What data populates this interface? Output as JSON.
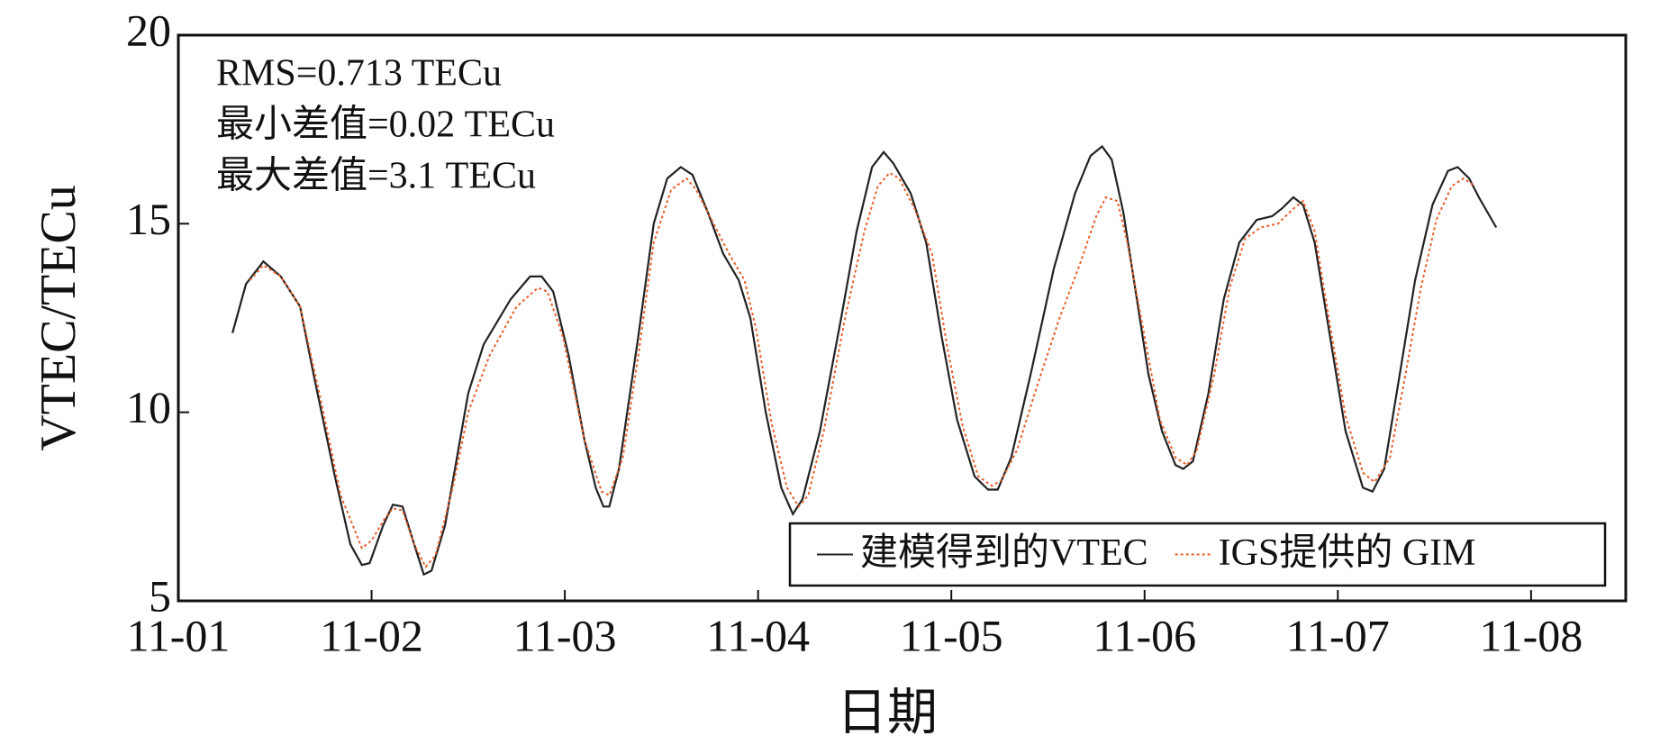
{
  "chart_data": {
    "type": "line",
    "xlabel": "日期",
    "ylabel": "VTEC/TECu",
    "annotations": [
      "RMS=0.713 TECu",
      "最小差值=0.02 TECu",
      "最大差值=3.1 TECu"
    ],
    "xlim": [
      0,
      7.49
    ],
    "xticks": [
      {
        "value": 0,
        "label": "11-01"
      },
      {
        "value": 1,
        "label": "11-02"
      },
      {
        "value": 2,
        "label": "11-03"
      },
      {
        "value": 3,
        "label": "11-04"
      },
      {
        "value": 4,
        "label": "11-05"
      },
      {
        "value": 5,
        "label": "11-06"
      },
      {
        "value": 6,
        "label": "11-07"
      },
      {
        "value": 7,
        "label": "11-08"
      }
    ],
    "ylim": [
      5,
      20
    ],
    "yticks": [
      5,
      10,
      15,
      20
    ],
    "legend": "lower right",
    "series": [
      {
        "name": "建模得到的VTEC",
        "color": "#222222",
        "style": "solid",
        "x": [
          0.28,
          0.35,
          0.44,
          0.53,
          0.63,
          0.7,
          0.81,
          0.89,
          0.95,
          0.99,
          1.06,
          1.11,
          1.16,
          1.22,
          1.27,
          1.31,
          1.38,
          1.5,
          1.58,
          1.72,
          1.82,
          1.88,
          1.94,
          2.02,
          2.1,
          2.16,
          2.2,
          2.23,
          2.28,
          2.38,
          2.46,
          2.53,
          2.6,
          2.66,
          2.74,
          2.82,
          2.9,
          2.96,
          3.04,
          3.12,
          3.18,
          3.23,
          3.32,
          3.43,
          3.51,
          3.59,
          3.65,
          3.7,
          3.79,
          3.87,
          3.95,
          4.03,
          4.12,
          4.19,
          4.24,
          4.31,
          4.41,
          4.53,
          4.64,
          4.72,
          4.78,
          4.83,
          4.89,
          4.96,
          5.02,
          5.09,
          5.16,
          5.2,
          5.25,
          5.33,
          5.41,
          5.49,
          5.58,
          5.66,
          5.71,
          5.77,
          5.82,
          5.88,
          5.96,
          6.04,
          6.13,
          6.18,
          6.24,
          6.32,
          6.4,
          6.49,
          6.57,
          6.62,
          6.68,
          6.73,
          6.82
        ],
        "values": [
          12.1,
          13.4,
          14.0,
          13.6,
          12.8,
          11.0,
          8.3,
          6.5,
          5.95,
          6.0,
          7.0,
          7.55,
          7.5,
          6.5,
          5.7,
          5.8,
          7.0,
          10.5,
          11.8,
          13.0,
          13.6,
          13.6,
          13.2,
          11.5,
          9.3,
          8.0,
          7.5,
          7.5,
          8.5,
          12.0,
          15.0,
          16.2,
          16.5,
          16.3,
          15.3,
          14.2,
          13.5,
          12.5,
          10.0,
          8.0,
          7.3,
          7.7,
          9.5,
          12.5,
          14.8,
          16.5,
          16.9,
          16.6,
          15.8,
          14.5,
          12.0,
          9.8,
          8.3,
          7.95,
          7.95,
          8.8,
          11.0,
          13.8,
          15.8,
          16.8,
          17.05,
          16.7,
          15.3,
          13.0,
          11.0,
          9.5,
          8.6,
          8.5,
          8.7,
          10.5,
          13.0,
          14.5,
          15.1,
          15.2,
          15.4,
          15.7,
          15.5,
          14.5,
          12.0,
          9.5,
          8.0,
          7.9,
          8.5,
          11.0,
          13.5,
          15.5,
          16.4,
          16.5,
          16.2,
          15.7,
          14.9
        ]
      },
      {
        "name": "IGS提供的 GIM",
        "color": "#e8602c",
        "style": "dotted",
        "x": [
          0.37,
          0.44,
          0.53,
          0.63,
          0.73,
          0.84,
          0.95,
          1.0,
          1.07,
          1.11,
          1.16,
          1.22,
          1.28,
          1.33,
          1.42,
          1.5,
          1.61,
          1.75,
          1.86,
          1.91,
          1.99,
          2.1,
          2.19,
          2.23,
          2.3,
          2.38,
          2.46,
          2.55,
          2.63,
          2.68,
          2.77,
          2.85,
          2.93,
          2.99,
          3.07,
          3.15,
          3.21,
          3.26,
          3.34,
          3.45,
          3.55,
          3.62,
          3.68,
          3.73,
          3.81,
          3.9,
          3.98,
          4.06,
          4.14,
          4.21,
          4.26,
          4.34,
          4.45,
          4.56,
          4.67,
          4.75,
          4.8,
          4.86,
          4.91,
          5.0,
          5.08,
          5.16,
          5.22,
          5.27,
          5.36,
          5.44,
          5.52,
          5.6,
          5.69,
          5.77,
          5.82,
          5.88,
          5.96,
          6.04,
          6.13,
          6.19,
          6.27,
          6.35,
          6.43,
          6.51,
          6.59,
          6.65,
          6.71
        ],
        "values": [
          13.5,
          13.9,
          13.6,
          12.8,
          10.5,
          7.8,
          6.4,
          6.6,
          7.2,
          7.45,
          7.4,
          6.5,
          5.9,
          6.2,
          8.0,
          10.0,
          11.5,
          12.8,
          13.3,
          13.2,
          12.0,
          9.3,
          7.9,
          7.8,
          8.8,
          11.5,
          14.5,
          15.9,
          16.2,
          15.9,
          15.0,
          14.2,
          13.5,
          12.2,
          9.7,
          8.0,
          7.5,
          7.8,
          9.5,
          12.5,
          14.8,
          16.0,
          16.35,
          16.2,
          15.4,
          14.2,
          11.7,
          9.6,
          8.3,
          8.05,
          8.2,
          9.0,
          10.8,
          12.5,
          14.0,
          15.2,
          15.7,
          15.6,
          14.5,
          12.0,
          9.8,
          8.8,
          8.6,
          9.0,
          11.0,
          13.3,
          14.6,
          14.9,
          15.0,
          15.4,
          15.6,
          14.8,
          12.3,
          9.9,
          8.4,
          8.15,
          8.8,
          11.0,
          13.3,
          15.1,
          16.0,
          16.2,
          16.0
        ]
      }
    ]
  }
}
